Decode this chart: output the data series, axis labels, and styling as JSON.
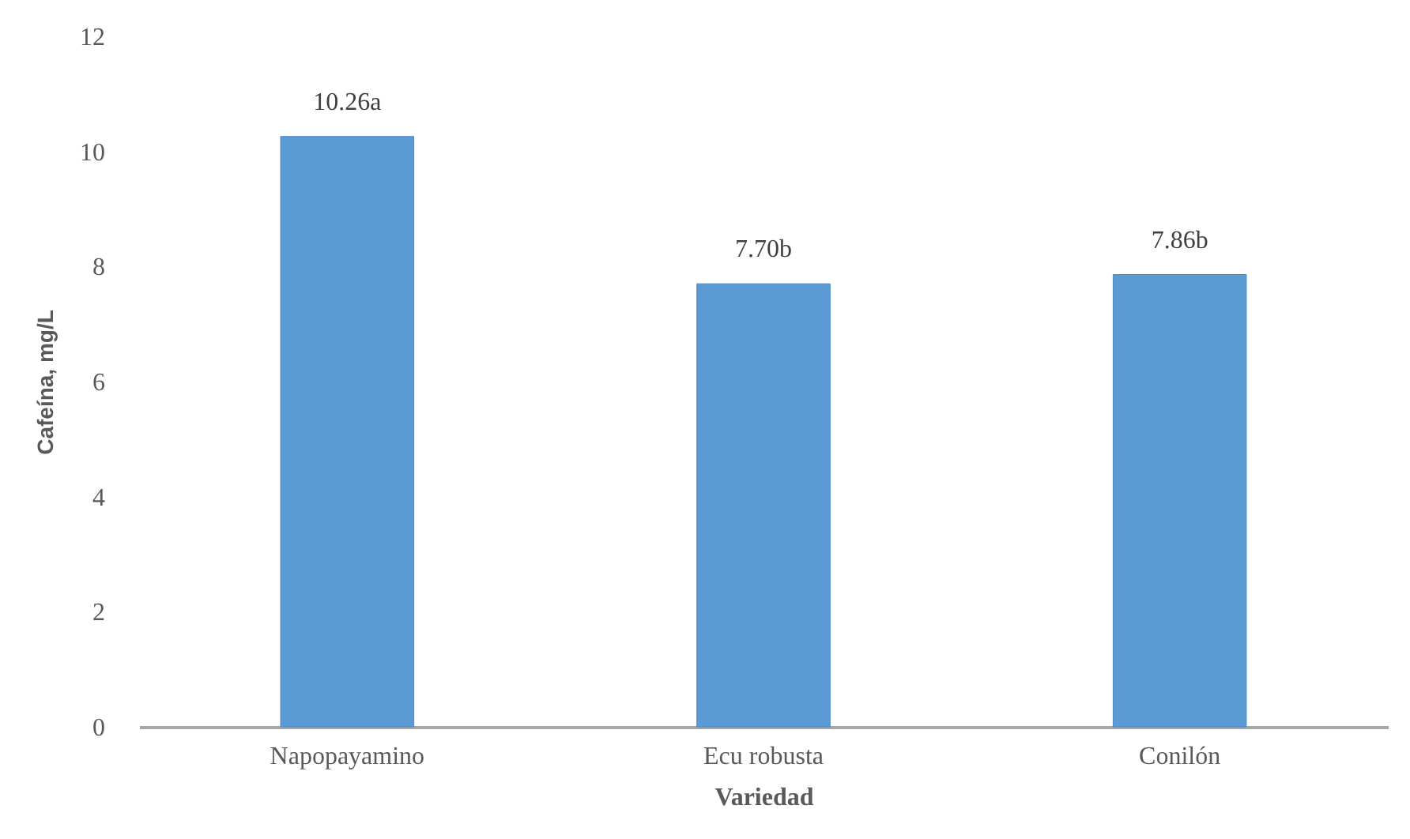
{
  "chart_data": {
    "type": "bar",
    "xlabel": "Variedad",
    "ylabel": "Cafeína, mg/L",
    "categories": [
      "Napopayamino",
      "Ecu robusta",
      "Conilón"
    ],
    "values": [
      10.26,
      7.7,
      7.86
    ],
    "value_labels": [
      "10.26a",
      "7.70b",
      "7.86b"
    ],
    "color": "#5b9bd5",
    "ylim": [
      0,
      12
    ],
    "yticks": [
      0,
      2,
      4,
      6,
      8,
      10,
      12
    ]
  }
}
